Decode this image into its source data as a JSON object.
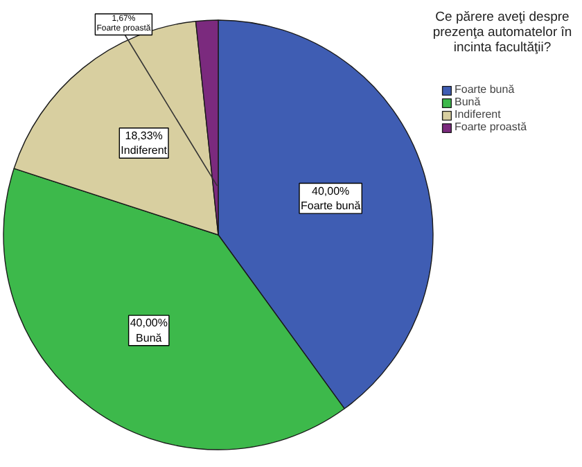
{
  "chart_data": {
    "type": "pie",
    "legend_title": "Ce părere aveţi despre prezenţa automatelor în incinta facultăţii?",
    "categories": [
      "Foarte bună",
      "Bună",
      "Indiferent",
      "Foarte proastă"
    ],
    "values": [
      40.0,
      40.0,
      18.33,
      1.67
    ],
    "value_labels": [
      "40,00%",
      "40,00%",
      "18,33%",
      "1,67%"
    ],
    "colors": [
      "#3f5db3",
      "#3db94b",
      "#d8cfa0",
      "#7b2a7e"
    ],
    "legend": "top right"
  }
}
